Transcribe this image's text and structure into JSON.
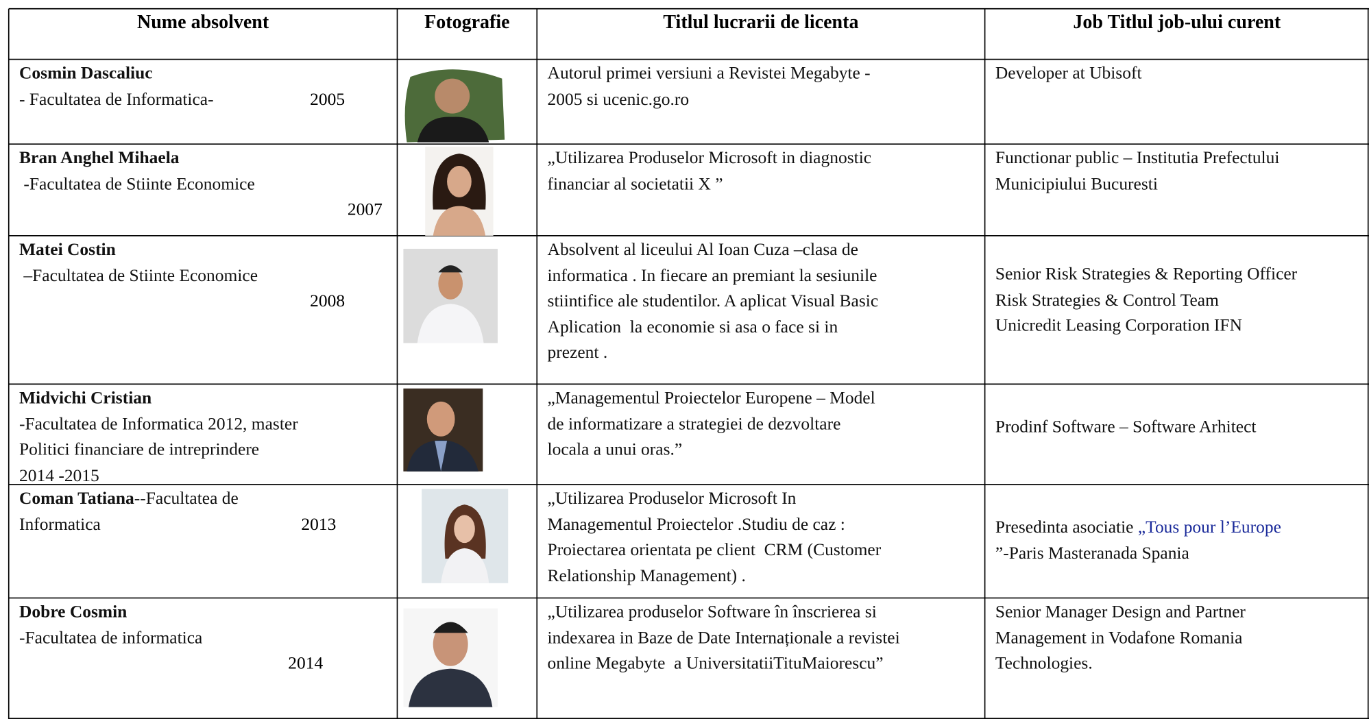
{
  "header": {
    "columns": [
      "Nume absolvent",
      "Fotografie",
      "Titlul lucrarii de licenta",
      "Job Titlul job-ului curent"
    ]
  },
  "rows": [
    {
      "name": "Cosmin Dascaliuc",
      "faculty": [
        "- Facultatea de Informatica-"
      ],
      "year": "2005",
      "thesis": [
        "Autorul primei versiuni a Revistei Megabyte -",
        "2005 si ucenic.go.ro"
      ],
      "job": [
        "Developer at Ubisoft"
      ]
    },
    {
      "name": "Bran Anghel Mihaela",
      "faculty": [
        " -Facultatea de Stiinte Economice"
      ],
      "year": "2007",
      "thesis": [
        "„Utilizarea Produselor Microsoft in diagnostic",
        "financiar al societatii X ”"
      ],
      "job": [
        "Functionar public – Institutia Prefectului",
        "Municipiului Bucuresti"
      ]
    },
    {
      "name": "Matei Costin",
      "faculty": [
        " –Facultatea de Stiinte Economice"
      ],
      "year": "2008",
      "thesis": [
        "Absolvent al liceului Al Ioan Cuza –clasa de",
        "informatica . In fiecare an premiant la sesiunile",
        "stiintifice ale studentilor. A aplicat Visual Basic",
        "Aplication  la economie si asa o face si in",
        "prezent ."
      ],
      "job": [
        "Senior Risk Strategies & Reporting Officer",
        "Risk Strategies & Control Team",
        "Unicredit Leasing Corporation IFN"
      ]
    },
    {
      "name": "Midvichi Cristian",
      "faculty": [
        "-Facultatea de Informatica 2012, master",
        "Politici financiare de intreprindere",
        "2014 -2015"
      ],
      "thesis": [
        "„Managementul Proiectelor Europene – Model",
        "de informatizare a strategiei de dezvoltare",
        "locala a unui oras.”"
      ],
      "job": [
        "Prodinf Software – Software Arhitect"
      ]
    },
    {
      "name": "Coman Tatiana",
      "name_suffix": "--Facultatea de",
      "faculty": [
        "Informatica"
      ],
      "year": "2013",
      "thesis": [
        "„Utilizarea Produselor Microsoft In",
        "Managementul Proiectelor .Studiu de caz :",
        "Proiectarea orientata pe client  CRM (Customer",
        "Relationship Management) ."
      ],
      "job": [
        "Presedinta asociatie ",
        "”-Paris Masteranada Spania"
      ],
      "job_link": "„Tous pour l’Europe"
    },
    {
      "name": "Dobre Cosmin",
      "faculty": [
        "-Facultatea de informatica"
      ],
      "year": "2014",
      "thesis": [
        "„Utilizarea produselor Software în înscrierea si",
        "indexarea in Baze de Date Internaționale a revistei",
        "online Megabyte  a UniversitatiiTituMaiorescu”"
      ],
      "job": [
        "Senior Manager Design and Partner",
        "Management in Vodafone Romania",
        "Technologies."
      ]
    }
  ]
}
